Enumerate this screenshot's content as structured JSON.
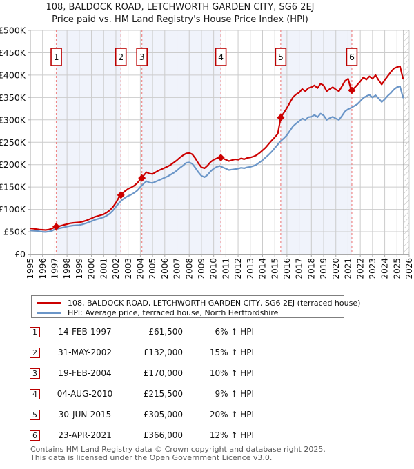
{
  "title": "108, BALDOCK ROAD, LETCHWORTH GARDEN CITY, SG6 2EJ",
  "subtitle": "Price paid vs. HM Land Registry's House Price Index (HPI)",
  "chart_data": {
    "type": "line",
    "xlim": [
      1995,
      2026
    ],
    "ylim": [
      0,
      500
    ],
    "x_tick_labels": [
      "1995",
      "1996",
      "1997",
      "1998",
      "1999",
      "2000",
      "2001",
      "2002",
      "2003",
      "2004",
      "2005",
      "2006",
      "2007",
      "2008",
      "2009",
      "2010",
      "2011",
      "2012",
      "2013",
      "2014",
      "2015",
      "2016",
      "2017",
      "2018",
      "2019",
      "2020",
      "2021",
      "2022",
      "2023",
      "2024",
      "2025",
      "2026"
    ],
    "y_tick_labels": [
      "£0",
      "£50K",
      "£100K",
      "£150K",
      "£200K",
      "£250K",
      "£300K",
      "£350K",
      "£400K",
      "£450K",
      "£500K"
    ],
    "y_unit": "GBP thousands",
    "grid": true,
    "band_color": "#f0f3fb",
    "grid_color": "#cccccc",
    "axis_color": "#aaaaaa",
    "hatch_start_x": 2025.55,
    "x_start": 1995,
    "x_step": 0.25,
    "series": [
      {
        "name": "108, BALDOCK ROAD, LETCHWORTH GARDEN CITY, SG6 2EJ (terraced house)",
        "color": "#cc0000",
        "values": [
          57.5,
          57,
          56,
          55,
          54.5,
          54,
          55,
          57,
          60,
          62,
          63.5,
          65.5,
          67,
          69,
          70,
          70.5,
          71,
          72.5,
          74.5,
          77,
          80,
          83,
          85,
          87,
          89,
          93,
          98,
          105,
          115,
          127,
          135,
          141,
          146,
          149,
          153,
          159,
          167,
          175,
          183,
          180,
          179,
          183,
          187,
          190,
          193,
          196,
          200,
          205,
          210,
          216,
          221,
          225,
          226,
          223,
          214,
          203,
          194,
          192,
          198,
          206,
          211,
          214,
          217,
          214,
          211,
          208,
          210,
          212,
          211,
          214,
          212,
          215,
          216,
          218,
          221,
          226,
          232,
          238,
          246,
          254,
          261,
          269,
          306,
          316,
          327,
          339,
          351,
          357,
          361,
          369,
          364,
          371,
          373,
          377,
          371,
          381,
          377,
          364,
          369,
          373,
          368,
          364,
          375,
          387,
          392,
          367,
          371,
          378,
          386,
          395,
          390,
          397,
          392,
          400,
          389,
          379,
          389,
          398,
          407,
          415,
          418,
          420,
          392
        ]
      },
      {
        "name": "HPI: Average price, terraced house, North Hertfordshire",
        "color": "#6b96c8",
        "values": [
          53,
          52.5,
          52,
          51,
          50,
          49.5,
          50.5,
          52,
          55.5,
          57,
          58.5,
          60,
          61.5,
          63,
          64,
          64.5,
          65,
          66.5,
          68.5,
          71,
          73.5,
          76.5,
          78.5,
          80.5,
          82.5,
          86,
          90.5,
          97,
          106,
          114,
          121,
          126,
          130,
          133,
          137,
          142,
          150,
          157,
          163,
          160,
          159,
          162,
          165,
          168,
          171,
          174,
          178,
          182,
          187,
          193,
          198,
          204,
          205,
          202,
          193,
          183,
          175,
          172,
          177,
          185,
          191,
          195,
          197,
          194,
          191,
          188,
          189,
          190,
          191,
          193,
          192,
          194,
          195,
          197,
          200,
          205,
          210,
          216,
          222,
          229,
          237,
          245,
          253,
          259,
          266,
          276,
          286,
          292,
          297,
          303,
          300,
          306,
          307,
          311,
          306,
          314,
          310,
          300,
          304,
          307,
          303,
          300,
          309,
          319,
          324,
          327,
          331,
          335,
          342,
          349,
          353,
          356,
          350,
          355,
          348,
          340,
          346,
          354,
          360,
          368,
          373,
          375,
          350
        ]
      }
    ],
    "sales": [
      {
        "n": "1",
        "x": 1997.12,
        "y": 61.5
      },
      {
        "n": "2",
        "x": 2002.41,
        "y": 132
      },
      {
        "n": "3",
        "x": 2004.13,
        "y": 170
      },
      {
        "n": "4",
        "x": 2010.59,
        "y": 215.5
      },
      {
        "n": "5",
        "x": 2015.49,
        "y": 305
      },
      {
        "n": "6",
        "x": 2021.31,
        "y": 366
      }
    ],
    "sale_line_color": "#ee8888",
    "marker_color": "#cc0000",
    "event_box_border": "#bb0000"
  },
  "legend": {
    "items": [
      {
        "label": "108, BALDOCK ROAD, LETCHWORTH GARDEN CITY, SG6 2EJ (terraced house)",
        "color": "#cc0000"
      },
      {
        "label": "HPI: Average price, terraced house, North Hertfordshire",
        "color": "#6b96c8"
      }
    ]
  },
  "table": {
    "rows": [
      {
        "n": "1",
        "date": "14-FEB-1997",
        "price": "£61,500",
        "vs_hpi": "6% ↑ HPI"
      },
      {
        "n": "2",
        "date": "31-MAY-2002",
        "price": "£132,000",
        "vs_hpi": "15% ↑ HPI"
      },
      {
        "n": "3",
        "date": "19-FEB-2004",
        "price": "£170,000",
        "vs_hpi": "10% ↑ HPI"
      },
      {
        "n": "4",
        "date": "04-AUG-2010",
        "price": "£215,500",
        "vs_hpi": "9% ↑ HPI"
      },
      {
        "n": "5",
        "date": "30-JUN-2015",
        "price": "£305,000",
        "vs_hpi": "20% ↑ HPI"
      },
      {
        "n": "6",
        "date": "23-APR-2021",
        "price": "£366,000",
        "vs_hpi": "12% ↑ HPI"
      }
    ]
  },
  "footer": {
    "line1": "Contains HM Land Registry data © Crown copyright and database right 2025.",
    "line2": "This data is licensed under the Open Government Licence v3.0."
  }
}
